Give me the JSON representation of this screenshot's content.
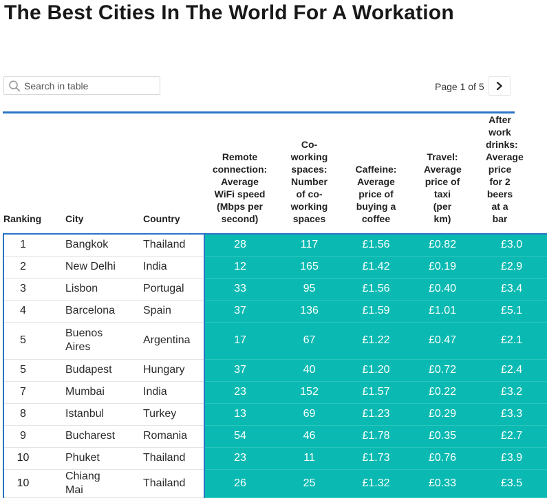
{
  "title": "The Best Cities In The World For A Workation",
  "search": {
    "placeholder": "Search in table",
    "icon": "search-icon"
  },
  "pagination": {
    "label": "Page 1 of 5",
    "next_icon": "chevron-right-icon"
  },
  "colors": {
    "accent": "#2a74c6",
    "highlight": "#0abab2"
  },
  "table": {
    "headers": [
      "Ranking",
      "City",
      "Country",
      "Remote connection: Average WiFi speed (Mbps per second)",
      "Co-working spaces: Number of co-working spaces",
      "Caffeine: Average price of buying a coffee",
      "Travel: Average price of taxi (per km)",
      "After work drinks: Average price for 2 beers at a bar"
    ],
    "rows": [
      {
        "rank": "1",
        "city": "Bangkok",
        "country": "Thailand",
        "wifi": "28",
        "cowork": "117",
        "coffee": "£1.56",
        "taxi": "£0.82",
        "beer": "£3.0"
      },
      {
        "rank": "2",
        "city": "New Delhi",
        "country": "India",
        "wifi": "12",
        "cowork": "165",
        "coffee": "£1.42",
        "taxi": "£0.19",
        "beer": "£2.9"
      },
      {
        "rank": "3",
        "city": "Lisbon",
        "country": "Portugal",
        "wifi": "33",
        "cowork": "95",
        "coffee": "£1.56",
        "taxi": "£0.40",
        "beer": "£3.4"
      },
      {
        "rank": "4",
        "city": "Barcelona",
        "country": "Spain",
        "wifi": "37",
        "cowork": "136",
        "coffee": "£1.59",
        "taxi": "£1.01",
        "beer": "£5.1"
      },
      {
        "rank": "5",
        "city": "Buenos Aires",
        "country": "Argentina",
        "wifi": "17",
        "cowork": "67",
        "coffee": "£1.22",
        "taxi": "£0.47",
        "beer": "£2.1"
      },
      {
        "rank": "5",
        "city": "Budapest",
        "country": "Hungary",
        "wifi": "37",
        "cowork": "40",
        "coffee": "£1.20",
        "taxi": "£0.72",
        "beer": "£2.4"
      },
      {
        "rank": "7",
        "city": "Mumbai",
        "country": "India",
        "wifi": "23",
        "cowork": "152",
        "coffee": "£1.57",
        "taxi": "£0.22",
        "beer": "£3.2"
      },
      {
        "rank": "8",
        "city": "Istanbul",
        "country": "Turkey",
        "wifi": "13",
        "cowork": "69",
        "coffee": "£1.23",
        "taxi": "£0.29",
        "beer": "£3.3"
      },
      {
        "rank": "9",
        "city": "Bucharest",
        "country": "Romania",
        "wifi": "54",
        "cowork": "46",
        "coffee": "£1.78",
        "taxi": "£0.35",
        "beer": "£2.7"
      },
      {
        "rank": "10",
        "city": "Phuket",
        "country": "Thailand",
        "wifi": "23",
        "cowork": "11",
        "coffee": "£1.73",
        "taxi": "£0.76",
        "beer": "£3.9"
      },
      {
        "rank": "10",
        "city": "Chiang Mai",
        "country": "Thailand",
        "wifi": "26",
        "cowork": "25",
        "coffee": "£1.32",
        "taxi": "£0.33",
        "beer": "£3.5"
      }
    ]
  }
}
